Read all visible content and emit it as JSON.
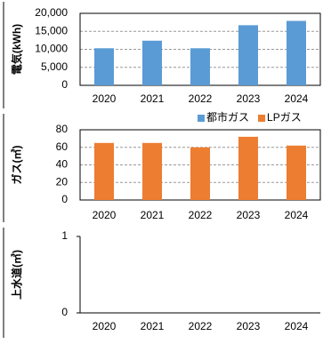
{
  "chart_data": [
    {
      "type": "bar",
      "ylabel": "電気(kWh)",
      "categories": [
        "2020",
        "2021",
        "2022",
        "2023",
        "2024"
      ],
      "values": [
        10300,
        12400,
        10300,
        16700,
        17900
      ],
      "color": "#5b9bd5",
      "ylim": [
        0,
        20000
      ],
      "yticks": [
        0,
        {
          "value": 5000,
          "label": "5,000"
        },
        {
          "value": 10000,
          "label": "10,000"
        },
        {
          "value": 15000,
          "label": "15,000"
        },
        {
          "value": 20000,
          "label": "20,000"
        }
      ],
      "grid": true
    },
    {
      "type": "bar",
      "ylabel": "ガス(㎥)",
      "categories": [
        "2020",
        "2021",
        "2022",
        "2023",
        "2024"
      ],
      "series": [
        {
          "name": "都市ガス",
          "color": "#5b9bd5",
          "values": [
            null,
            null,
            null,
            null,
            null
          ]
        },
        {
          "name": "LPガス",
          "color": "#ed7d31",
          "values": [
            65,
            65,
            60,
            72,
            62
          ]
        }
      ],
      "ylim": [
        0,
        80
      ],
      "yticks": [
        0,
        20,
        40,
        60,
        80
      ],
      "grid": true,
      "legend": "top-right"
    },
    {
      "type": "bar",
      "ylabel": "上水道(㎥)",
      "categories": [
        "2020",
        "2021",
        "2022",
        "2023",
        "2024"
      ],
      "ylim": [
        0,
        1
      ],
      "yticks": [
        0,
        1
      ],
      "grid": false
    }
  ]
}
